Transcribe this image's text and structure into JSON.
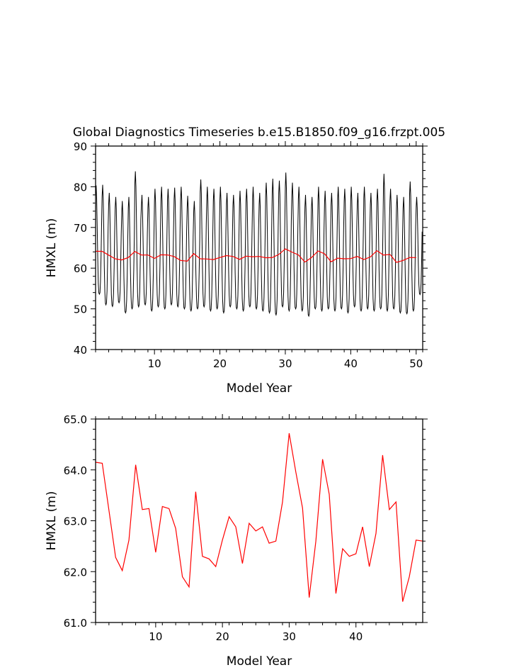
{
  "title": "Global Diagnostics Timeseries b.e15.B1850.f09_g16.frzpt.005",
  "colors": {
    "monthly": "#000000",
    "annual": "#ff0000",
    "axes": "#000000"
  },
  "chart_data": [
    {
      "type": "line",
      "title": "Global Diagnostics Timeseries b.e15.B1850.f09_g16.frzpt.005",
      "xlabel": "Model Year",
      "ylabel": "HMXL (m)",
      "xlim": [
        1,
        51
      ],
      "ylim": [
        40,
        90
      ],
      "xticks": [
        "10",
        "20",
        "30",
        "40",
        "50"
      ],
      "yticks": [
        "40",
        "50",
        "60",
        "70",
        "80",
        "90"
      ],
      "grid": false,
      "series": [
        {
          "color": "#000000",
          "kind": "monthly seasonal cycle, one peak per year",
          "x": [
            1,
            2,
            3,
            4,
            5,
            6,
            7,
            8,
            9,
            10,
            11,
            12,
            13,
            14,
            15,
            16,
            17,
            18,
            19,
            20,
            21,
            22,
            23,
            24,
            25,
            26,
            27,
            28,
            29,
            30,
            31,
            32,
            33,
            34,
            35,
            36,
            37,
            38,
            39,
            40,
            41,
            42,
            43,
            44,
            45,
            46,
            47,
            48,
            49,
            50
          ],
          "annual_max": [
            80.3,
            80.5,
            78.5,
            77.5,
            76.5,
            77.5,
            83.8,
            78.0,
            77.5,
            79.5,
            80.0,
            79.5,
            79.8,
            80.0,
            77.8,
            76.5,
            81.8,
            80.0,
            79.5,
            80.0,
            78.5,
            78.0,
            79.0,
            79.5,
            80.0,
            78.5,
            81.0,
            82.0,
            81.5,
            83.5,
            81.0,
            80.0,
            78.0,
            77.5,
            80.0,
            79.0,
            78.5,
            80.0,
            79.5,
            80.0,
            78.5,
            80.0,
            78.5,
            79.5,
            83.2,
            79.5,
            78.0,
            77.5,
            81.3,
            77.5
          ],
          "annual_min": [
            53.6,
            51.0,
            50.6,
            51.5,
            49.0,
            50.0,
            50.5,
            51.0,
            49.5,
            50.5,
            50.0,
            51.0,
            50.5,
            50.0,
            49.5,
            50.0,
            50.5,
            49.5,
            50.0,
            49.0,
            50.5,
            50.0,
            49.5,
            50.5,
            50.0,
            49.5,
            49.0,
            48.5,
            50.5,
            49.5,
            50.0,
            49.5,
            48.2,
            50.0,
            49.5,
            50.0,
            49.5,
            50.0,
            49.0,
            50.5,
            49.5,
            50.0,
            49.5,
            50.0,
            49.5,
            50.0,
            49.0,
            48.8,
            49.5,
            53.5
          ]
        },
        {
          "color": "#ff0000",
          "kind": "annual mean",
          "x": [
            1,
            2,
            3,
            4,
            5,
            6,
            7,
            8,
            9,
            10,
            11,
            12,
            13,
            14,
            15,
            16,
            17,
            18,
            19,
            20,
            21,
            22,
            23,
            24,
            25,
            26,
            27,
            28,
            29,
            30,
            31,
            32,
            33,
            34,
            35,
            36,
            37,
            38,
            39,
            40,
            41,
            42,
            43,
            44,
            45,
            46,
            47,
            48,
            49,
            50
          ],
          "y": [
            64.15,
            64.13,
            63.2,
            62.28,
            62.02,
            62.62,
            64.1,
            63.22,
            63.24,
            62.38,
            63.28,
            63.24,
            62.85,
            61.9,
            61.7,
            63.57,
            62.3,
            62.25,
            62.1,
            62.62,
            63.08,
            62.88,
            62.16,
            62.95,
            62.8,
            62.88,
            62.56,
            62.6,
            63.37,
            64.72,
            63.95,
            63.25,
            61.49,
            62.6,
            64.21,
            63.52,
            61.57,
            62.45,
            62.3,
            62.35,
            62.88,
            62.1,
            62.75,
            64.29,
            63.22,
            63.37,
            61.41,
            61.9,
            62.62,
            62.6
          ]
        }
      ]
    },
    {
      "type": "line",
      "title": "",
      "xlabel": "Model Year",
      "ylabel": "HMXL (m)",
      "xlim": [
        1,
        50
      ],
      "ylim": [
        61.0,
        65.0
      ],
      "xticks": [
        "10",
        "20",
        "30",
        "40"
      ],
      "yticks": [
        "61.0",
        "62.0",
        "63.0",
        "64.0",
        "65.0"
      ],
      "grid": false,
      "series": [
        {
          "color": "#ff0000",
          "kind": "annual mean",
          "x": [
            1,
            2,
            3,
            4,
            5,
            6,
            7,
            8,
            9,
            10,
            11,
            12,
            13,
            14,
            15,
            16,
            17,
            18,
            19,
            20,
            21,
            22,
            23,
            24,
            25,
            26,
            27,
            28,
            29,
            30,
            31,
            32,
            33,
            34,
            35,
            36,
            37,
            38,
            39,
            40,
            41,
            42,
            43,
            44,
            45,
            46,
            47,
            48,
            49,
            50
          ],
          "y": [
            64.15,
            64.13,
            63.2,
            62.28,
            62.02,
            62.62,
            64.1,
            63.22,
            63.24,
            62.38,
            63.28,
            63.24,
            62.85,
            61.9,
            61.7,
            63.57,
            62.3,
            62.25,
            62.1,
            62.62,
            63.08,
            62.88,
            62.16,
            62.95,
            62.8,
            62.88,
            62.56,
            62.6,
            63.37,
            64.72,
            63.95,
            63.25,
            61.49,
            62.6,
            64.21,
            63.52,
            61.57,
            62.45,
            62.3,
            62.35,
            62.88,
            62.1,
            62.75,
            64.29,
            63.22,
            63.37,
            61.41,
            61.9,
            62.62,
            62.6
          ]
        }
      ]
    }
  ]
}
